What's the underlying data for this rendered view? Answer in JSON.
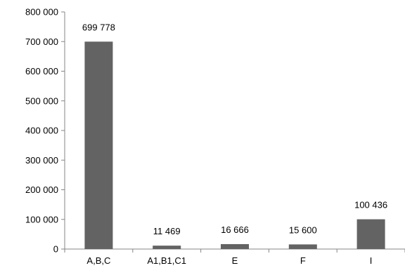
{
  "chart_data": {
    "type": "bar",
    "categories": [
      "A,B,C",
      "A1,B1,C1",
      "E",
      "F",
      "I"
    ],
    "values": [
      699778,
      11469,
      16666,
      15600,
      100436
    ],
    "data_labels": [
      "699 778",
      "11 469",
      "16 666",
      "15 600",
      "100 436"
    ],
    "y_ticks": [
      0,
      100000,
      200000,
      300000,
      400000,
      500000,
      600000,
      700000,
      800000
    ],
    "y_tick_labels": [
      "0",
      "100 000",
      "200 000",
      "300 000",
      "400 000",
      "500 000",
      "600 000",
      "700 000",
      "800 000"
    ],
    "ylim": [
      0,
      800000
    ],
    "grid": false,
    "legend": "none",
    "bar_color": "#636363",
    "axis_color": "#868686",
    "title": "",
    "xlabel": "",
    "ylabel": ""
  }
}
